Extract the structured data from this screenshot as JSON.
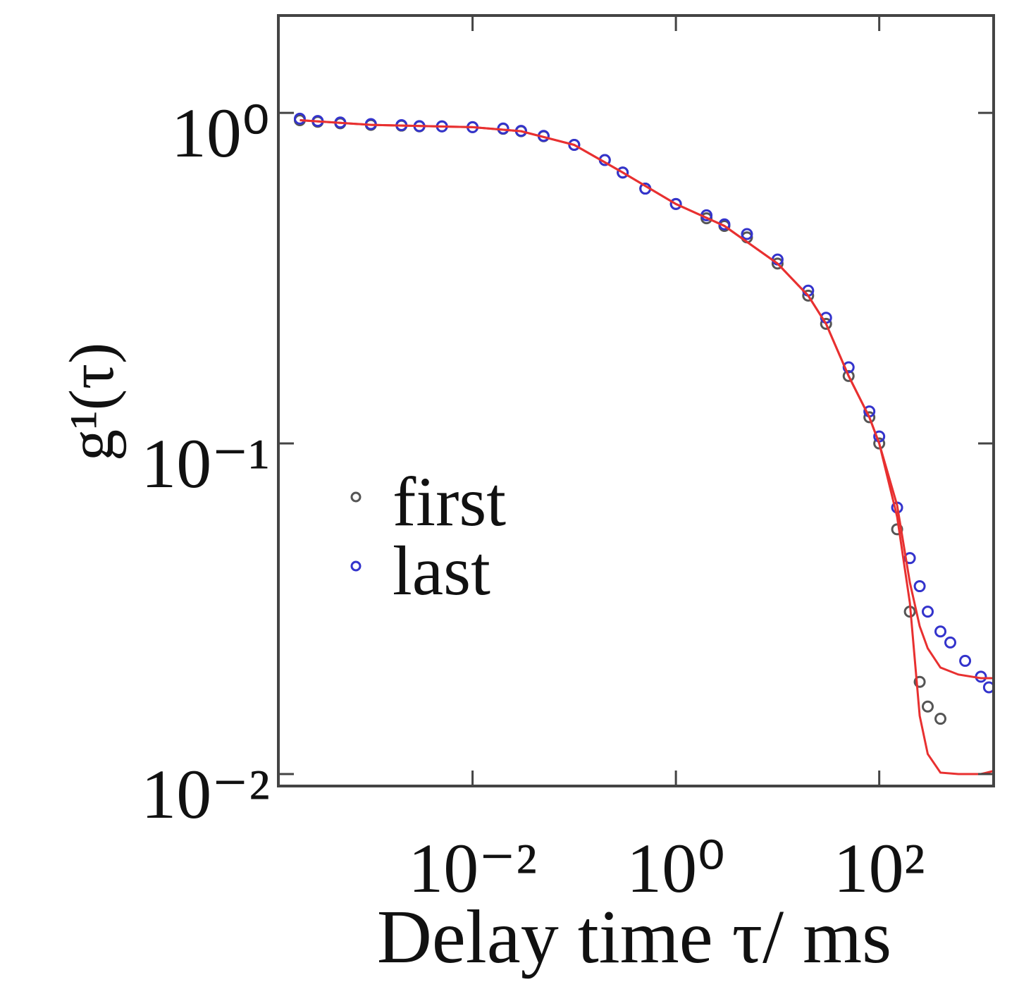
{
  "chart_data": {
    "type": "scatter",
    "x_label": "Delay time τ/ ms",
    "y_label": "g¹(τ)",
    "xscale": "log",
    "yscale": "log",
    "xlim": [
      0.000123,
      1334
    ],
    "ylim": [
      0.0092,
      1.97
    ],
    "xticks": [
      {
        "value": 0.01,
        "label": "10⁻²"
      },
      {
        "value": 1,
        "label": "10⁰"
      },
      {
        "value": 100,
        "label": "10²"
      }
    ],
    "yticks": [
      {
        "value": 0.01,
        "label": "10⁻²"
      },
      {
        "value": 0.1,
        "label": "10⁻¹"
      },
      {
        "value": 1,
        "label": "10⁰"
      }
    ],
    "legend": "left",
    "series": [
      {
        "name": "first",
        "color": "#555555",
        "x": [
          0.0002,
          0.0003,
          0.0005,
          0.001,
          0.002,
          0.003,
          0.005,
          0.01,
          0.02,
          0.03,
          0.05,
          0.1,
          0.2,
          0.3,
          0.5,
          1,
          2,
          3,
          5,
          10,
          20,
          30,
          50,
          80,
          100,
          150,
          200,
          250,
          300,
          400
        ],
        "values": [
          0.95,
          0.94,
          0.93,
          0.92,
          0.915,
          0.91,
          0.91,
          0.905,
          0.895,
          0.88,
          0.85,
          0.8,
          0.72,
          0.66,
          0.59,
          0.53,
          0.48,
          0.455,
          0.42,
          0.35,
          0.28,
          0.23,
          0.16,
          0.12,
          0.1,
          0.055,
          0.031,
          0.019,
          0.016,
          0.0147
        ]
      },
      {
        "name": "last",
        "color": "#3333cc",
        "x": [
          0.0002,
          0.0003,
          0.0005,
          0.001,
          0.002,
          0.003,
          0.005,
          0.01,
          0.02,
          0.03,
          0.05,
          0.1,
          0.2,
          0.3,
          0.5,
          1,
          2,
          3,
          5,
          10,
          20,
          30,
          50,
          80,
          100,
          150,
          200,
          250,
          300,
          400,
          500,
          700,
          1000,
          1200
        ],
        "values": [
          0.96,
          0.945,
          0.935,
          0.925,
          0.918,
          0.912,
          0.91,
          0.905,
          0.897,
          0.882,
          0.852,
          0.8,
          0.72,
          0.66,
          0.59,
          0.53,
          0.49,
          0.46,
          0.43,
          0.36,
          0.29,
          0.24,
          0.17,
          0.125,
          0.105,
          0.064,
          0.045,
          0.037,
          0.031,
          0.027,
          0.025,
          0.022,
          0.0197,
          0.0183
        ]
      },
      {
        "kind": "line",
        "color": "#e83030",
        "x": [
          0.0002,
          0.001,
          0.01,
          0.03,
          0.1,
          0.3,
          1,
          3,
          10,
          20,
          30,
          50,
          80,
          100,
          150,
          200,
          250,
          300,
          400,
          600,
          1000,
          1300
        ],
        "values": [
          0.95,
          0.92,
          0.905,
          0.88,
          0.8,
          0.66,
          0.53,
          0.455,
          0.35,
          0.28,
          0.23,
          0.16,
          0.12,
          0.1,
          0.06,
          0.033,
          0.015,
          0.0115,
          0.0101,
          0.01,
          0.01,
          0.0102
        ]
      },
      {
        "kind": "line",
        "color": "#e83030",
        "x": [
          0.0002,
          0.001,
          0.01,
          0.03,
          0.1,
          0.3,
          1,
          3,
          10,
          20,
          30,
          50,
          80,
          100,
          150,
          200,
          250,
          300,
          400,
          600,
          1000,
          1300
        ],
        "values": [
          0.95,
          0.92,
          0.905,
          0.88,
          0.8,
          0.66,
          0.53,
          0.455,
          0.35,
          0.28,
          0.23,
          0.16,
          0.12,
          0.1,
          0.065,
          0.038,
          0.028,
          0.024,
          0.021,
          0.02,
          0.0195,
          0.0195
        ]
      }
    ]
  }
}
